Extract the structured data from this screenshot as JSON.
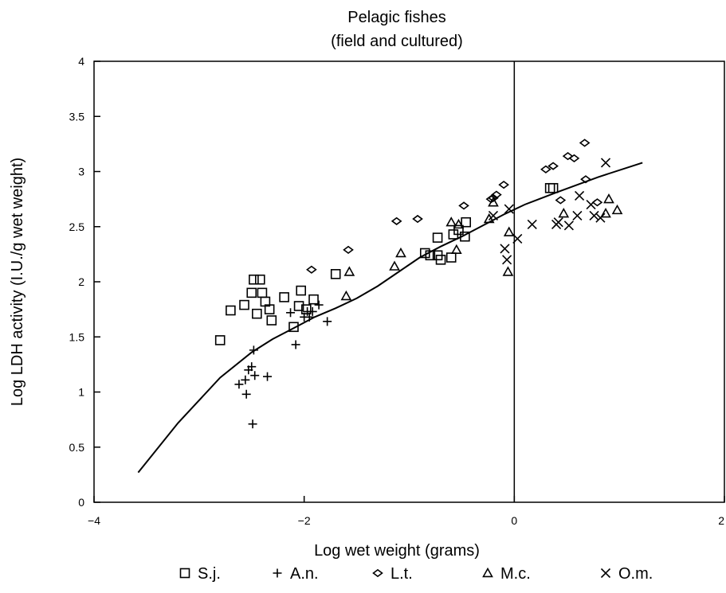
{
  "chart_data": {
    "type": "scatter",
    "title": "Pelagic fishes",
    "subtitle": "(field and cultured)",
    "xlabel": "Log wet weight (grams)",
    "ylabel": "Log LDH activity (I.U./g wet weight)",
    "xlim": [
      -4,
      2
    ],
    "ylim": [
      0,
      4
    ],
    "x_ticks": [
      -4,
      -2,
      0,
      2
    ],
    "x_tick_labels": [
      "−4",
      "−2",
      "0",
      "2"
    ],
    "y_ticks": [
      0,
      0.5,
      1,
      1.5,
      2,
      2.5,
      3,
      3.5,
      4
    ],
    "y_tick_labels": [
      "0",
      "0.5",
      "1",
      "1.5",
      "2",
      "2.5",
      "3",
      "3.5",
      "4"
    ],
    "grid": false,
    "vertical_reference_line_x": 0,
    "legend_placement": "bottom",
    "series": [
      {
        "name": "S.j.",
        "marker": "square",
        "points": [
          [
            -2.8,
            1.47
          ],
          [
            -2.7,
            1.74
          ],
          [
            -2.57,
            1.79
          ],
          [
            -2.5,
            1.9
          ],
          [
            -2.48,
            2.02
          ],
          [
            -2.45,
            1.71
          ],
          [
            -2.42,
            2.02
          ],
          [
            -2.4,
            1.9
          ],
          [
            -2.37,
            1.82
          ],
          [
            -2.33,
            1.75
          ],
          [
            -2.31,
            1.65
          ],
          [
            -2.19,
            1.86
          ],
          [
            -2.1,
            1.59
          ],
          [
            -2.05,
            1.78
          ],
          [
            -2.03,
            1.92
          ],
          [
            -1.98,
            1.75
          ],
          [
            -1.91,
            1.84
          ],
          [
            -1.7,
            2.07
          ],
          [
            -0.85,
            2.26
          ],
          [
            -0.8,
            2.24
          ],
          [
            -0.73,
            2.24
          ],
          [
            -0.73,
            2.4
          ],
          [
            -0.7,
            2.2
          ],
          [
            -0.6,
            2.22
          ],
          [
            -0.58,
            2.43
          ],
          [
            -0.53,
            2.47
          ],
          [
            -0.47,
            2.41
          ],
          [
            -0.46,
            2.54
          ],
          [
            0.34,
            2.85
          ],
          [
            0.37,
            2.85
          ]
        ]
      },
      {
        "name": "A.n.",
        "marker": "plus",
        "points": [
          [
            -2.62,
            1.07
          ],
          [
            -2.56,
            1.11
          ],
          [
            -2.55,
            0.98
          ],
          [
            -2.53,
            1.2
          ],
          [
            -2.5,
            1.23
          ],
          [
            -2.49,
            0.71
          ],
          [
            -2.48,
            1.38
          ],
          [
            -2.47,
            1.15
          ],
          [
            -2.35,
            1.14
          ],
          [
            -2.13,
            1.72
          ],
          [
            -2.08,
            1.43
          ],
          [
            -2.0,
            1.68
          ],
          [
            -1.97,
            1.73
          ],
          [
            -1.95,
            1.68
          ],
          [
            -1.92,
            1.73
          ],
          [
            -1.86,
            1.79
          ],
          [
            -1.78,
            1.64
          ]
        ]
      },
      {
        "name": "L.t.",
        "marker": "diamond",
        "points": [
          [
            -1.93,
            2.11
          ],
          [
            -1.58,
            2.29
          ],
          [
            -1.12,
            2.55
          ],
          [
            -0.92,
            2.57
          ],
          [
            -0.48,
            2.69
          ],
          [
            -0.22,
            2.75
          ],
          [
            -0.2,
            2.76
          ],
          [
            -0.17,
            2.79
          ],
          [
            -0.1,
            2.88
          ],
          [
            0.3,
            3.02
          ],
          [
            0.37,
            3.05
          ],
          [
            0.44,
            2.74
          ],
          [
            0.51,
            3.14
          ],
          [
            0.57,
            3.12
          ],
          [
            0.67,
            3.26
          ],
          [
            0.68,
            2.93
          ],
          [
            0.79,
            2.72
          ]
        ]
      },
      {
        "name": "M.c.",
        "marker": "triangle",
        "points": [
          [
            -1.6,
            1.87
          ],
          [
            -1.57,
            2.09
          ],
          [
            -1.14,
            2.14
          ],
          [
            -1.08,
            2.26
          ],
          [
            -0.6,
            2.54
          ],
          [
            -0.55,
            2.29
          ],
          [
            -0.53,
            2.52
          ],
          [
            -0.24,
            2.57
          ],
          [
            -0.2,
            2.72
          ],
          [
            -0.06,
            2.09
          ],
          [
            -0.05,
            2.45
          ],
          [
            0.47,
            2.62
          ],
          [
            0.87,
            2.62
          ],
          [
            0.9,
            2.75
          ],
          [
            0.98,
            2.65
          ]
        ]
      },
      {
        "name": "O.m.",
        "marker": "x",
        "points": [
          [
            -0.2,
            2.6
          ],
          [
            -0.09,
            2.3
          ],
          [
            -0.07,
            2.2
          ],
          [
            -0.05,
            2.66
          ],
          [
            0.03,
            2.39
          ],
          [
            0.17,
            2.52
          ],
          [
            0.4,
            2.52
          ],
          [
            0.42,
            2.54
          ],
          [
            0.52,
            2.51
          ],
          [
            0.6,
            2.6
          ],
          [
            0.62,
            2.78
          ],
          [
            0.73,
            2.7
          ],
          [
            0.76,
            2.6
          ],
          [
            0.82,
            2.58
          ],
          [
            0.87,
            3.08
          ]
        ]
      }
    ],
    "fit_curve": [
      [
        -3.58,
        0.27
      ],
      [
        -3.2,
        0.72
      ],
      [
        -2.8,
        1.13
      ],
      [
        -2.5,
        1.36
      ],
      [
        -2.3,
        1.48
      ],
      [
        -2.1,
        1.58
      ],
      [
        -1.9,
        1.68
      ],
      [
        -1.7,
        1.76
      ],
      [
        -1.5,
        1.85
      ],
      [
        -1.3,
        1.96
      ],
      [
        -1.1,
        2.09
      ],
      [
        -0.9,
        2.22
      ],
      [
        -0.7,
        2.32
      ],
      [
        -0.5,
        2.41
      ],
      [
        -0.3,
        2.51
      ],
      [
        -0.1,
        2.61
      ],
      [
        0.1,
        2.7
      ],
      [
        0.4,
        2.81
      ],
      [
        0.8,
        2.95
      ],
      [
        1.22,
        3.08
      ]
    ]
  }
}
